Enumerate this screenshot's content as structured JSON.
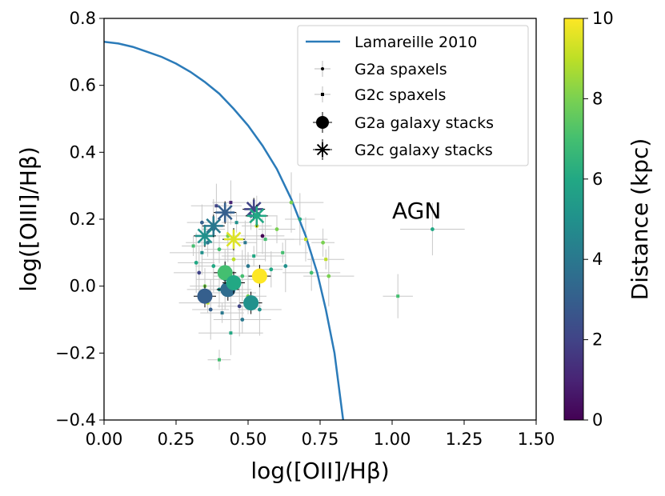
{
  "chart_data": {
    "type": "scatter",
    "xlabel": "log([OII]/Hβ)",
    "ylabel": "log([OIII]/Hβ)",
    "xlim": [
      0.0,
      1.5
    ],
    "ylim": [
      -0.4,
      0.8
    ],
    "x_ticks": [
      "0.00",
      "0.25",
      "0.50",
      "0.75",
      "1.00",
      "1.25",
      "1.50"
    ],
    "y_ticks": [
      "−0.4",
      "−0.2",
      "0.0",
      "0.2",
      "0.4",
      "0.6",
      "0.8"
    ],
    "grid": false,
    "legend_position": "top-right",
    "annotation": "AGN",
    "colorbar": {
      "label": "Distance (kpc)",
      "range": [
        0,
        10
      ],
      "ticks": [
        "0",
        "2",
        "4",
        "6",
        "8",
        "10"
      ],
      "colormap": "viridis"
    },
    "legend": [
      {
        "label": "Lamareille 2010"
      },
      {
        "label": "G2a spaxels"
      },
      {
        "label": "G2c spaxels"
      },
      {
        "label": "G2a galaxy stacks"
      },
      {
        "label": "G2c galaxy stacks"
      }
    ],
    "demarcation": {
      "name": "Lamareille 2010",
      "color": "#2b7bb9",
      "points": [
        [
          0.0,
          0.73
        ],
        [
          0.05,
          0.725
        ],
        [
          0.1,
          0.715
        ],
        [
          0.15,
          0.7
        ],
        [
          0.2,
          0.685
        ],
        [
          0.25,
          0.665
        ],
        [
          0.3,
          0.64
        ],
        [
          0.35,
          0.61
        ],
        [
          0.4,
          0.575
        ],
        [
          0.45,
          0.53
        ],
        [
          0.5,
          0.48
        ],
        [
          0.55,
          0.42
        ],
        [
          0.6,
          0.35
        ],
        [
          0.65,
          0.26
        ],
        [
          0.7,
          0.15
        ],
        [
          0.74,
          0.04
        ],
        [
          0.77,
          -0.07
        ],
        [
          0.8,
          -0.2
        ],
        [
          0.83,
          -0.4
        ]
      ]
    },
    "spaxels": [
      {
        "x": 0.31,
        "y": 0.12,
        "d": 7
      },
      {
        "x": 0.32,
        "y": 0.07,
        "d": 6
      },
      {
        "x": 0.33,
        "y": 0.04,
        "d": 2
      },
      {
        "x": 0.34,
        "y": 0.1,
        "d": 5
      },
      {
        "x": 0.35,
        "y": 0.0,
        "d": 8
      },
      {
        "x": 0.36,
        "y": 0.13,
        "d": 4
      },
      {
        "x": 0.36,
        "y": -0.05,
        "d": 9
      },
      {
        "x": 0.38,
        "y": 0.17,
        "d": 3
      },
      {
        "x": 0.38,
        "y": 0.06,
        "d": 6
      },
      {
        "x": 0.39,
        "y": 0.24,
        "d": 2
      },
      {
        "x": 0.4,
        "y": -0.01,
        "d": 5
      },
      {
        "x": 0.4,
        "y": 0.11,
        "d": 7
      },
      {
        "x": 0.41,
        "y": -0.08,
        "d": 4
      },
      {
        "x": 0.42,
        "y": 0.02,
        "d": 3
      },
      {
        "x": 0.43,
        "y": 0.15,
        "d": 8
      },
      {
        "x": 0.44,
        "y": 0.25,
        "d": 1
      },
      {
        "x": 0.44,
        "y": -0.02,
        "d": 6
      },
      {
        "x": 0.45,
        "y": 0.08,
        "d": 9
      },
      {
        "x": 0.46,
        "y": 0.19,
        "d": 5
      },
      {
        "x": 0.47,
        "y": -0.06,
        "d": 2
      },
      {
        "x": 0.48,
        "y": 0.03,
        "d": 7
      },
      {
        "x": 0.49,
        "y": 0.13,
        "d": 4
      },
      {
        "x": 0.5,
        "y": -0.03,
        "d": 8
      },
      {
        "x": 0.51,
        "y": 0.21,
        "d": 3
      },
      {
        "x": 0.52,
        "y": 0.09,
        "d": 6
      },
      {
        "x": 0.53,
        "y": 0.18,
        "d": 9
      },
      {
        "x": 0.54,
        "y": -0.07,
        "d": 5
      },
      {
        "x": 0.56,
        "y": 0.14,
        "d": 7
      },
      {
        "x": 0.58,
        "y": 0.05,
        "d": 6
      },
      {
        "x": 0.6,
        "y": 0.17,
        "d": 8
      },
      {
        "x": 0.62,
        "y": 0.1,
        "d": 7
      },
      {
        "x": 0.65,
        "y": 0.25,
        "d": 8
      },
      {
        "x": 0.68,
        "y": 0.2,
        "d": 6
      },
      {
        "x": 0.7,
        "y": 0.14,
        "d": 9
      },
      {
        "x": 0.72,
        "y": 0.04,
        "d": 7
      },
      {
        "x": 0.76,
        "y": 0.13,
        "d": 8
      },
      {
        "x": 0.77,
        "y": 0.08,
        "d": 9
      },
      {
        "x": 0.78,
        "y": 0.03,
        "d": 8
      },
      {
        "x": 1.14,
        "y": 0.17,
        "d": 6
      },
      {
        "x": 1.02,
        "y": -0.03,
        "d": 7
      },
      {
        "x": 0.55,
        "y": 0.15,
        "d": 0
      },
      {
        "x": 0.48,
        "y": -0.1,
        "d": 4
      },
      {
        "x": 0.4,
        "y": -0.22,
        "d": 7
      },
      {
        "x": 0.37,
        "y": -0.07,
        "d": 3
      },
      {
        "x": 0.63,
        "y": 0.06,
        "d": 5
      },
      {
        "x": 0.44,
        "y": -0.14,
        "d": 6
      },
      {
        "x": 0.34,
        "y": 0.19,
        "d": 3
      },
      {
        "x": 0.5,
        "y": 0.06,
        "d": 4
      }
    ],
    "g2a_stacks": [
      {
        "x": 0.35,
        "y": -0.03,
        "d": 3
      },
      {
        "x": 0.43,
        "y": -0.01,
        "d": 3.5
      },
      {
        "x": 0.42,
        "y": 0.04,
        "d": 7
      },
      {
        "x": 0.45,
        "y": 0.01,
        "d": 6
      },
      {
        "x": 0.51,
        "y": -0.05,
        "d": 5
      },
      {
        "x": 0.54,
        "y": 0.03,
        "d": 10
      }
    ],
    "g2c_stacks": [
      {
        "x": 0.35,
        "y": 0.15,
        "d": 5
      },
      {
        "x": 0.38,
        "y": 0.18,
        "d": 4
      },
      {
        "x": 0.42,
        "y": 0.22,
        "d": 3
      },
      {
        "x": 0.45,
        "y": 0.14,
        "d": 9.5
      },
      {
        "x": 0.52,
        "y": 0.23,
        "d": 2
      },
      {
        "x": 0.53,
        "y": 0.21,
        "d": 6
      }
    ]
  }
}
